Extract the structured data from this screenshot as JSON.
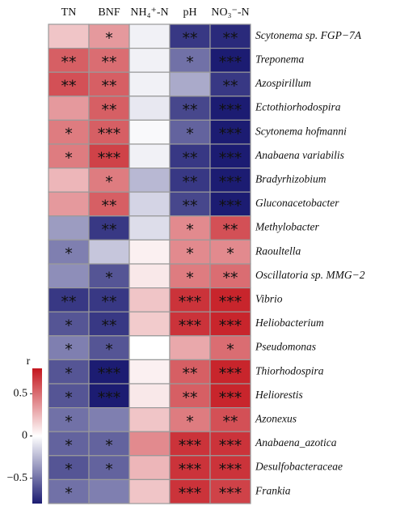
{
  "chart_data": {
    "type": "heatmap",
    "columns": [
      "TN",
      "BNF",
      "NH₄⁺-N",
      "pH",
      "NO₃⁻-N"
    ],
    "rows": [
      "Scytonema sp. FGP−7A",
      "Treponema",
      "Azospirillum",
      "Ectothiorhodospira",
      "Scytonema hofmanni",
      "Anabaena variabilis",
      "Bradyrhizobium",
      "Gluconacetobacter",
      "Methylobacter",
      "Raoultella",
      "Oscillatoria sp. MMG−2",
      "Vibrio",
      "Heliobacterium",
      "Pseudomonas",
      "Thiorhodospira",
      "Heliorestis",
      "Azonexus",
      "Anabaena_azotica",
      "Desulfobacteraceae",
      "Frankia"
    ],
    "values": [
      [
        0.2,
        0.35,
        -0.05,
        -0.7,
        -0.75
      ],
      [
        0.55,
        0.5,
        -0.05,
        -0.5,
        -0.8
      ],
      [
        0.6,
        0.55,
        -0.05,
        -0.3,
        -0.7
      ],
      [
        0.35,
        0.55,
        -0.08,
        -0.65,
        -0.8
      ],
      [
        0.45,
        0.55,
        -0.02,
        -0.55,
        -0.8
      ],
      [
        0.45,
        0.65,
        -0.05,
        -0.7,
        -0.8
      ],
      [
        0.25,
        0.45,
        -0.25,
        -0.7,
        -0.8
      ],
      [
        0.35,
        0.55,
        -0.15,
        -0.65,
        -0.8
      ],
      [
        -0.35,
        -0.7,
        -0.12,
        0.4,
        0.6
      ],
      [
        -0.45,
        -0.2,
        0.05,
        0.4,
        0.4
      ],
      [
        -0.4,
        -0.6,
        0.08,
        0.45,
        0.5
      ],
      [
        -0.7,
        -0.7,
        0.2,
        0.7,
        0.75
      ],
      [
        -0.6,
        -0.7,
        0.18,
        0.7,
        0.75
      ],
      [
        -0.45,
        -0.6,
        0.0,
        0.3,
        0.5
      ],
      [
        -0.6,
        -0.8,
        0.05,
        0.55,
        0.75
      ],
      [
        -0.6,
        -0.8,
        0.08,
        0.55,
        0.75
      ],
      [
        -0.5,
        -0.45,
        0.2,
        0.45,
        0.6
      ],
      [
        -0.55,
        -0.55,
        0.4,
        0.7,
        0.7
      ],
      [
        -0.6,
        -0.55,
        0.25,
        0.7,
        0.7
      ],
      [
        -0.5,
        -0.45,
        0.2,
        0.7,
        0.65
      ]
    ],
    "stars": [
      [
        null,
        "*",
        null,
        "**",
        "**"
      ],
      [
        "**",
        "**",
        null,
        "*",
        "***"
      ],
      [
        "**",
        "**",
        null,
        null,
        "**"
      ],
      [
        null,
        "**",
        null,
        "**",
        "***"
      ],
      [
        "*",
        "***",
        null,
        "*",
        "***"
      ],
      [
        "*",
        "***",
        null,
        "**",
        "***"
      ],
      [
        null,
        "*",
        null,
        "**",
        "***"
      ],
      [
        null,
        "**",
        null,
        "**",
        "***"
      ],
      [
        null,
        "**",
        null,
        "*",
        "**"
      ],
      [
        "*",
        null,
        null,
        "*",
        "*"
      ],
      [
        null,
        "*",
        null,
        "*",
        "**"
      ],
      [
        "**",
        "**",
        null,
        "***",
        "***"
      ],
      [
        "*",
        "**",
        null,
        "***",
        "***"
      ],
      [
        "*",
        "*",
        null,
        null,
        "*"
      ],
      [
        "*",
        "***",
        null,
        "**",
        "***"
      ],
      [
        "*",
        "***",
        null,
        "**",
        "***"
      ],
      [
        "*",
        null,
        null,
        "*",
        "**"
      ],
      [
        "*",
        "*",
        null,
        "***",
        "***"
      ],
      [
        "*",
        "*",
        null,
        "***",
        "***"
      ],
      [
        "*",
        null,
        null,
        "***",
        "***"
      ]
    ],
    "colorbar_label": "r",
    "zlim": [
      -0.8,
      0.8
    ],
    "zticks": [
      0.5,
      0,
      {
        "value": -0.5,
        "label": "−0.5"
      }
    ],
    "colors": [
      "#1c1c72",
      "#ffffff",
      "#c4161e"
    ]
  }
}
